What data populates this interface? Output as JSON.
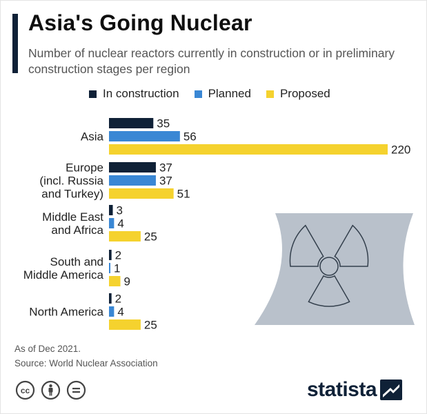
{
  "title": "Asia's Going Nuclear",
  "subtitle": "Number of nuclear reactors currently in construction or in preliminary construction stages per region",
  "notes": [
    "As of Dec 2021.",
    "Source: World Nuclear Association"
  ],
  "brand": "statista",
  "colors": {
    "in_construction": "#0f2137",
    "planned": "#3a87d4",
    "proposed": "#f5d22e",
    "illustration": "#b9c1cb"
  },
  "icons": [
    "cc-icon",
    "attribution-icon",
    "no-derivatives-icon",
    "statista-logo-icon",
    "radiation-icon",
    "cooling-tower-icon"
  ],
  "chart_data": {
    "type": "bar",
    "orientation": "horizontal",
    "title": "Asia's Going Nuclear",
    "categories": [
      [
        "Asia"
      ],
      [
        "Europe",
        "(incl. Russia",
        "and Turkey)"
      ],
      [
        "Middle East",
        "and Africa"
      ],
      [
        "South and",
        "Middle America"
      ],
      [
        "North America"
      ]
    ],
    "series": [
      {
        "name": "In construction",
        "values": [
          35,
          37,
          3,
          2,
          2
        ]
      },
      {
        "name": "Planned",
        "values": [
          56,
          37,
          4,
          1,
          4
        ]
      },
      {
        "name": "Proposed",
        "values": [
          220,
          51,
          25,
          9,
          25
        ]
      }
    ],
    "legend_position": "top",
    "grid": false
  }
}
